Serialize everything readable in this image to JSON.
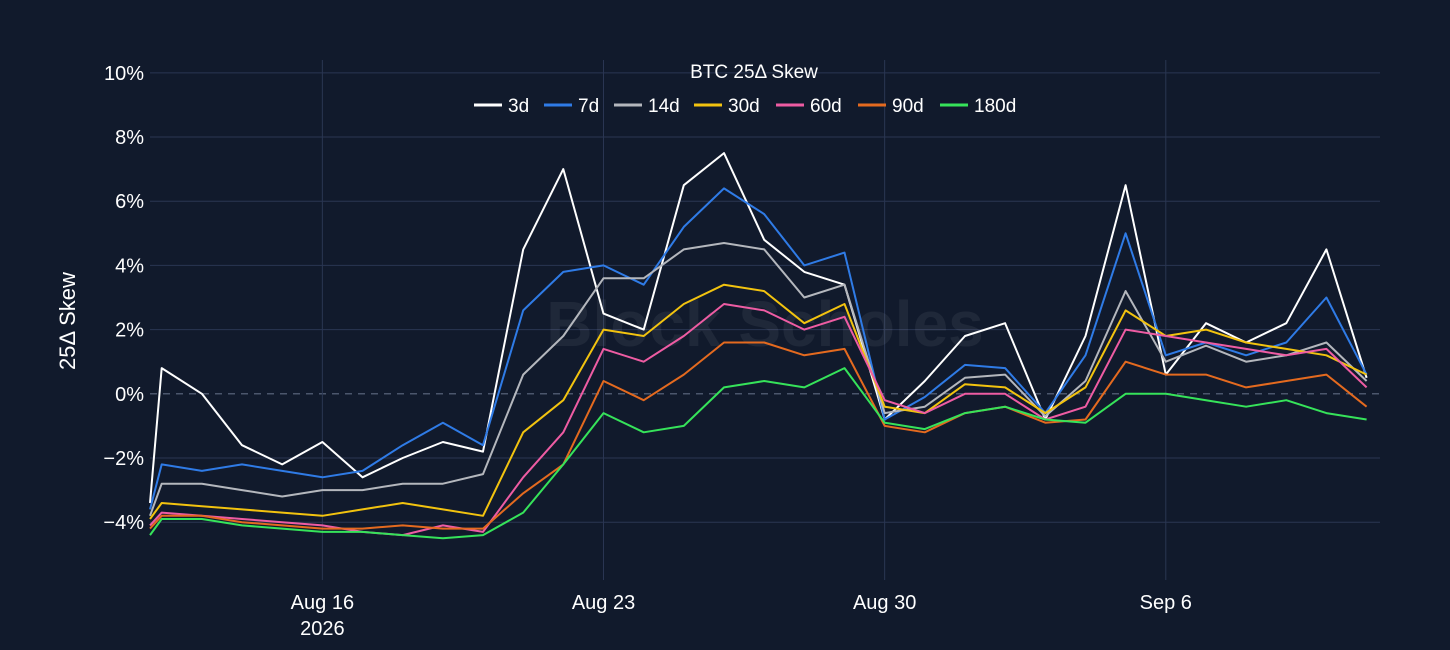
{
  "chart_data": {
    "type": "line",
    "title": "BTC 25Δ Skew",
    "ylabel": "25Δ Skew",
    "xlabel": "",
    "watermark": "Block Scholes",
    "y_unit": "%",
    "ylim": [
      -5.8,
      10.4
    ],
    "y_ticks": [
      {
        "value": -4,
        "label": "−4%"
      },
      {
        "value": -2,
        "label": "−2%"
      },
      {
        "value": 0,
        "label": "0%"
      },
      {
        "value": 2,
        "label": "2%"
      },
      {
        "value": 4,
        "label": "4%"
      },
      {
        "value": 6,
        "label": "6%"
      },
      {
        "value": 8,
        "label": "8%"
      },
      {
        "value": 10,
        "label": "10%"
      }
    ],
    "x_range": [
      "2026-08-11T17:00",
      "2026-09-11T08:00"
    ],
    "x_ticks": [
      {
        "date": "2026-08-16",
        "label": "Aug 16",
        "sublabel": "2026"
      },
      {
        "date": "2026-08-23",
        "label": "Aug 23",
        "sublabel": ""
      },
      {
        "date": "2026-08-30",
        "label": "Aug 30",
        "sublabel": ""
      },
      {
        "date": "2026-09-06",
        "label": "Sep 6",
        "sublabel": ""
      }
    ],
    "grid": true,
    "zero_line": "dashed",
    "legend_position": "top-center",
    "series_dates": [
      "2026-08-11",
      "2026-08-12",
      "2026-08-13",
      "2026-08-14",
      "2026-08-15",
      "2026-08-16",
      "2026-08-17",
      "2026-08-18",
      "2026-08-19",
      "2026-08-20",
      "2026-08-21",
      "2026-08-22",
      "2026-08-23",
      "2026-08-24",
      "2026-08-25",
      "2026-08-26",
      "2026-08-27",
      "2026-08-28",
      "2026-08-29",
      "2026-08-30",
      "2026-08-31",
      "2026-09-01",
      "2026-09-02",
      "2026-09-03",
      "2026-09-04",
      "2026-09-05",
      "2026-09-06",
      "2026-09-07",
      "2026-09-08",
      "2026-09-09",
      "2026-09-10",
      "2026-09-11"
    ],
    "series": [
      {
        "name": "3d",
        "color": "#ffffff",
        "values": [
          -3.4,
          0.8,
          0.0,
          -1.6,
          -2.2,
          -1.5,
          -2.6,
          -2.0,
          -1.5,
          -1.8,
          4.5,
          7.0,
          2.5,
          2.0,
          6.5,
          7.5,
          4.8,
          3.8,
          3.4,
          -0.8,
          0.4,
          1.8,
          2.2,
          -0.8,
          1.8,
          6.5,
          0.6,
          2.2,
          1.6,
          2.2,
          4.5,
          0.5
        ]
      },
      {
        "name": "7d",
        "color": "#2f7be6",
        "values": [
          -3.6,
          -2.2,
          -2.4,
          -2.2,
          -2.4,
          -2.6,
          -2.4,
          -1.6,
          -0.9,
          -1.6,
          2.6,
          3.8,
          4.0,
          3.4,
          5.2,
          6.4,
          5.6,
          4.0,
          4.4,
          -0.8,
          -0.1,
          0.9,
          0.8,
          -0.6,
          1.2,
          5.0,
          1.2,
          1.6,
          1.2,
          1.6,
          3.0,
          0.6
        ]
      },
      {
        "name": "14d",
        "color": "#b4b7bd",
        "values": [
          -3.8,
          -2.8,
          -2.8,
          -3.0,
          -3.2,
          -3.0,
          -3.0,
          -2.8,
          -2.8,
          -2.5,
          0.6,
          1.8,
          3.6,
          3.6,
          4.5,
          4.7,
          4.5,
          3.0,
          3.4,
          -0.6,
          -0.4,
          0.5,
          0.6,
          -0.7,
          0.4,
          3.2,
          1.0,
          1.5,
          1.0,
          1.2,
          1.6,
          0.4
        ]
      },
      {
        "name": "30d",
        "color": "#f2c30f",
        "values": [
          -3.9,
          -3.4,
          -3.5,
          -3.6,
          -3.7,
          -3.8,
          -3.6,
          -3.4,
          -3.6,
          -3.8,
          -1.2,
          -0.2,
          2.0,
          1.8,
          2.8,
          3.4,
          3.2,
          2.2,
          2.8,
          -0.4,
          -0.6,
          0.3,
          0.2,
          -0.6,
          0.2,
          2.6,
          1.8,
          2.0,
          1.6,
          1.4,
          1.2,
          0.6
        ]
      },
      {
        "name": "60d",
        "color": "#ee5ca3",
        "values": [
          -4.1,
          -3.7,
          -3.8,
          -3.9,
          -4.0,
          -4.1,
          -4.3,
          -4.4,
          -4.1,
          -4.3,
          -2.6,
          -1.2,
          1.4,
          1.0,
          1.8,
          2.8,
          2.6,
          2.0,
          2.4,
          -0.2,
          -0.6,
          0.0,
          0.0,
          -0.8,
          -0.4,
          2.0,
          1.8,
          1.6,
          1.4,
          1.2,
          1.4,
          0.2
        ]
      },
      {
        "name": "90d",
        "color": "#e46a1f",
        "values": [
          -4.2,
          -3.8,
          -3.8,
          -4.0,
          -4.1,
          -4.2,
          -4.2,
          -4.1,
          -4.2,
          -4.2,
          -3.1,
          -2.2,
          0.4,
          -0.2,
          0.6,
          1.6,
          1.6,
          1.2,
          1.4,
          -1.0,
          -1.2,
          -0.6,
          -0.4,
          -0.9,
          -0.8,
          1.0,
          0.6,
          0.6,
          0.2,
          0.4,
          0.6,
          -0.4
        ]
      },
      {
        "name": "180d",
        "color": "#36e35a",
        "values": [
          -4.4,
          -3.9,
          -3.9,
          -4.1,
          -4.2,
          -4.3,
          -4.3,
          -4.4,
          -4.5,
          -4.4,
          -3.7,
          -2.2,
          -0.6,
          -1.2,
          -1.0,
          0.2,
          0.4,
          0.2,
          0.8,
          -0.9,
          -1.1,
          -0.6,
          -0.4,
          -0.8,
          -0.9,
          0.0,
          0.0,
          -0.2,
          -0.4,
          -0.2,
          -0.6,
          -0.8
        ]
      }
    ]
  }
}
